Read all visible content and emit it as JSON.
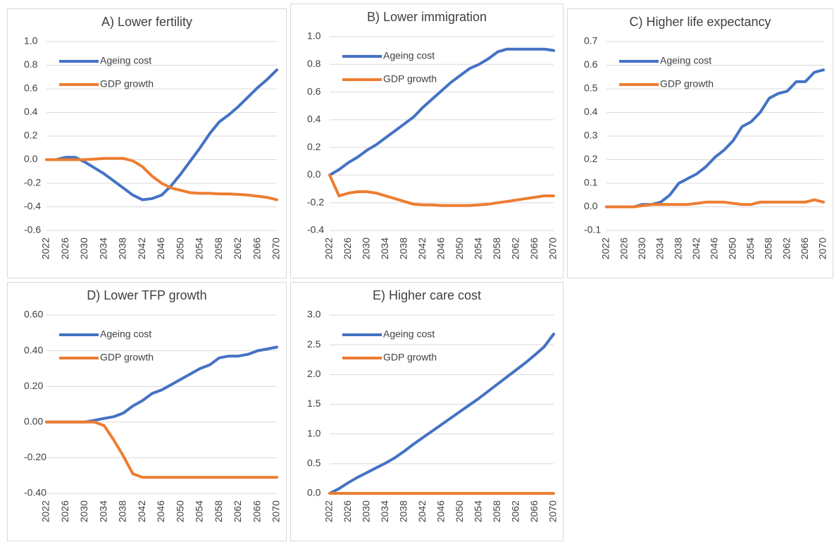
{
  "chart_data": [
    {
      "type": "line",
      "title": "A) Lower fertility",
      "x": [
        2022,
        2024,
        2026,
        2028,
        2030,
        2032,
        2034,
        2036,
        2038,
        2040,
        2042,
        2044,
        2046,
        2048,
        2050,
        2052,
        2054,
        2056,
        2058,
        2060,
        2062,
        2064,
        2066,
        2068,
        2070
      ],
      "xlim": [
        2022,
        2070
      ],
      "xticks": [
        2022,
        2026,
        2030,
        2034,
        2038,
        2042,
        2046,
        2050,
        2054,
        2058,
        2062,
        2066,
        2070
      ],
      "ylim": [
        -0.6,
        1
      ],
      "yticks": [
        -0.6,
        -0.4,
        -0.2,
        {
          "value": 0,
          "label": "0.0"
        },
        0.2,
        0.4,
        0.6,
        0.8,
        {
          "value": 1,
          "label": "1.0"
        }
      ],
      "grid": true,
      "legend": "upper left",
      "series": [
        {
          "name": "Ageing cost",
          "color": "#4472c4",
          "values": [
            0,
            0,
            0.02,
            0.02,
            -0.02,
            -0.07,
            -0.12,
            -0.18,
            -0.24,
            -0.3,
            -0.34,
            -0.33,
            -0.3,
            -0.22,
            -0.12,
            -0.01,
            0.1,
            0.22,
            0.32,
            0.38,
            0.45,
            0.53,
            0.61,
            0.68,
            0.76
          ]
        },
        {
          "name": "GDP growth",
          "color": "#ed7d31",
          "values": [
            0,
            0,
            0,
            0,
            0,
            0.005,
            0.01,
            0.01,
            0.01,
            -0.01,
            -0.06,
            -0.14,
            -0.2,
            -0.24,
            -0.26,
            -0.28,
            -0.285,
            -0.285,
            -0.29,
            -0.29,
            -0.295,
            -0.3,
            -0.31,
            -0.32,
            -0.34
          ]
        }
      ]
    },
    {
      "type": "line",
      "title": "B) Lower immigration",
      "x": [
        2022,
        2024,
        2026,
        2028,
        2030,
        2032,
        2034,
        2036,
        2038,
        2040,
        2042,
        2044,
        2046,
        2048,
        2050,
        2052,
        2054,
        2056,
        2058,
        2060,
        2062,
        2064,
        2066,
        2068,
        2070
      ],
      "xlim": [
        2022,
        2070
      ],
      "xticks": [
        2022,
        2026,
        2030,
        2034,
        2038,
        2042,
        2046,
        2050,
        2054,
        2058,
        2062,
        2066,
        2070
      ],
      "ylim": [
        -0.4,
        1
      ],
      "yticks": [
        -0.4,
        -0.2,
        {
          "value": 0,
          "label": "0.0"
        },
        0.2,
        0.4,
        0.6,
        0.8,
        {
          "value": 1,
          "label": "1.0"
        }
      ],
      "grid": true,
      "legend": "upper left",
      "series": [
        {
          "name": "Ageing cost",
          "color": "#4472c4",
          "values": [
            0,
            0.04,
            0.09,
            0.13,
            0.18,
            0.22,
            0.27,
            0.32,
            0.37,
            0.42,
            0.49,
            0.55,
            0.61,
            0.67,
            0.72,
            0.77,
            0.8,
            0.84,
            0.89,
            0.91,
            0.91,
            0.91,
            0.91,
            0.91,
            0.9
          ]
        },
        {
          "name": "GDP growth",
          "color": "#ed7d31",
          "values": [
            0,
            -0.15,
            -0.13,
            -0.12,
            -0.12,
            -0.13,
            -0.15,
            -0.17,
            -0.19,
            -0.21,
            -0.215,
            -0.215,
            -0.22,
            -0.22,
            -0.22,
            -0.22,
            -0.215,
            -0.21,
            -0.2,
            -0.19,
            -0.18,
            -0.17,
            -0.16,
            -0.15,
            -0.15
          ]
        }
      ]
    },
    {
      "type": "line",
      "title": "C) Higher life expectancy",
      "x": [
        2022,
        2024,
        2026,
        2028,
        2030,
        2032,
        2034,
        2036,
        2038,
        2040,
        2042,
        2044,
        2046,
        2048,
        2050,
        2052,
        2054,
        2056,
        2058,
        2060,
        2062,
        2064,
        2066,
        2068,
        2070
      ],
      "xlim": [
        2022,
        2070
      ],
      "xticks": [
        2022,
        2026,
        2030,
        2034,
        2038,
        2042,
        2046,
        2050,
        2054,
        2058,
        2062,
        2066,
        2070
      ],
      "ylim": [
        -0.1,
        0.7
      ],
      "yticks": [
        -0.1,
        {
          "value": 0,
          "label": "0.0"
        },
        0.1,
        0.2,
        0.3,
        0.4,
        0.5,
        0.6,
        0.7
      ],
      "grid": true,
      "legend": "upper left",
      "series": [
        {
          "name": "Ageing cost",
          "color": "#4472c4",
          "values": [
            0,
            0,
            0,
            0,
            0.01,
            0.01,
            0.02,
            0.05,
            0.1,
            0.12,
            0.14,
            0.17,
            0.21,
            0.24,
            0.28,
            0.34,
            0.36,
            0.4,
            0.46,
            0.48,
            0.49,
            0.53,
            0.53,
            0.57,
            0.58
          ]
        },
        {
          "name": "GDP growth",
          "color": "#ed7d31",
          "values": [
            0,
            0,
            0,
            0,
            0.005,
            0.01,
            0.01,
            0.01,
            0.01,
            0.01,
            0.015,
            0.02,
            0.02,
            0.02,
            0.015,
            0.01,
            0.01,
            0.02,
            0.02,
            0.02,
            0.02,
            0.02,
            0.02,
            0.03,
            0.02
          ]
        }
      ]
    },
    {
      "type": "line",
      "title": "D) Lower TFP growth",
      "x": [
        2022,
        2024,
        2026,
        2028,
        2030,
        2032,
        2034,
        2036,
        2038,
        2040,
        2042,
        2044,
        2046,
        2048,
        2050,
        2052,
        2054,
        2056,
        2058,
        2060,
        2062,
        2064,
        2066,
        2068,
        2070
      ],
      "xlim": [
        2022,
        2070
      ],
      "xticks": [
        2022,
        2026,
        2030,
        2034,
        2038,
        2042,
        2046,
        2050,
        2054,
        2058,
        2062,
        2066,
        2070
      ],
      "ylim": [
        -0.4,
        0.6
      ],
      "yticks": [
        {
          "value": -0.4,
          "label": "-0.40"
        },
        {
          "value": -0.2,
          "label": "-0.20"
        },
        {
          "value": 0,
          "label": "0.00"
        },
        {
          "value": 0.2,
          "label": "0.20"
        },
        {
          "value": 0.4,
          "label": "0.40"
        },
        {
          "value": 0.6,
          "label": "0.60"
        }
      ],
      "grid": true,
      "legend": "upper left",
      "series": [
        {
          "name": "Ageing cost",
          "color": "#4472c4",
          "values": [
            0,
            0,
            0,
            0,
            0,
            0.01,
            0.02,
            0.03,
            0.05,
            0.09,
            0.12,
            0.16,
            0.18,
            0.21,
            0.24,
            0.27,
            0.3,
            0.32,
            0.36,
            0.37,
            0.37,
            0.38,
            0.4,
            0.41,
            0.42
          ]
        },
        {
          "name": "GDP growth",
          "color": "#ed7d31",
          "values": [
            0,
            0,
            0,
            0,
            0,
            0,
            -0.02,
            -0.1,
            -0.19,
            -0.29,
            -0.31,
            -0.31,
            -0.31,
            -0.31,
            -0.31,
            -0.31,
            -0.31,
            -0.31,
            -0.31,
            -0.31,
            -0.31,
            -0.31,
            -0.31,
            -0.31,
            -0.31
          ]
        }
      ]
    },
    {
      "type": "line",
      "title": "E) Higher care cost",
      "x": [
        2022,
        2024,
        2026,
        2028,
        2030,
        2032,
        2034,
        2036,
        2038,
        2040,
        2042,
        2044,
        2046,
        2048,
        2050,
        2052,
        2054,
        2056,
        2058,
        2060,
        2062,
        2064,
        2066,
        2068,
        2070
      ],
      "xlim": [
        2022,
        2070
      ],
      "xticks": [
        2022,
        2026,
        2030,
        2034,
        2038,
        2042,
        2046,
        2050,
        2054,
        2058,
        2062,
        2066,
        2070
      ],
      "ylim": [
        0,
        3
      ],
      "yticks": [
        {
          "value": 0,
          "label": "0.0"
        },
        0.5,
        {
          "value": 1,
          "label": "1.0"
        },
        1.5,
        {
          "value": 2,
          "label": "2.0"
        },
        2.5,
        {
          "value": 3,
          "label": "3.0"
        }
      ],
      "grid": true,
      "legend": "upper left",
      "series": [
        {
          "name": "Ageing cost",
          "color": "#4472c4",
          "values": [
            0,
            0.08,
            0.18,
            0.27,
            0.35,
            0.43,
            0.51,
            0.6,
            0.71,
            0.83,
            0.94,
            1.05,
            1.16,
            1.27,
            1.38,
            1.49,
            1.6,
            1.72,
            1.84,
            1.96,
            2.08,
            2.2,
            2.33,
            2.47,
            2.68
          ]
        },
        {
          "name": "GDP growth",
          "color": "#ed7d31",
          "values": [
            0,
            0,
            0,
            0,
            0,
            0,
            0,
            0,
            0,
            0,
            0,
            0,
            0,
            0,
            0,
            0,
            0,
            0,
            0,
            0,
            0,
            0,
            0,
            0,
            0
          ]
        }
      ]
    }
  ]
}
